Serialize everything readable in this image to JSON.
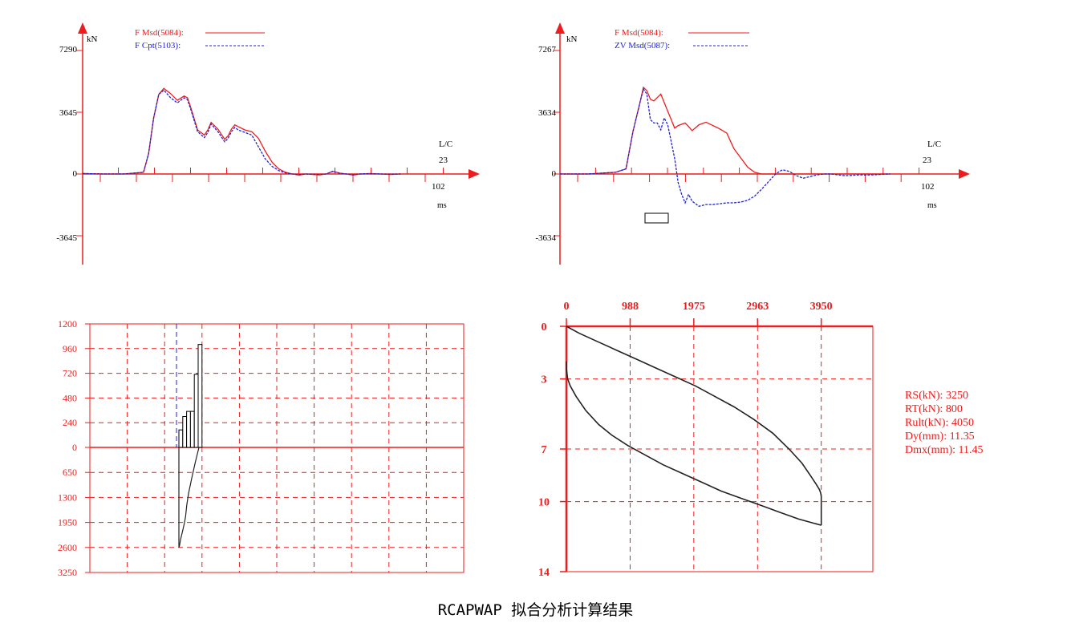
{
  "caption": "RCAPWAP 拟合分析计算结果",
  "colors": {
    "red": "#ee1c1c",
    "blue": "#1e22d8",
    "black": "#000000",
    "grid": "#ee1c1c",
    "curve": "#222222"
  },
  "chart_data": [
    {
      "id": "force-match",
      "type": "line",
      "ylabel": "kN",
      "yticks": [
        7290,
        3645,
        0,
        -3645
      ],
      "ylim": [
        -4500,
        8200
      ],
      "lc_label": "L/C",
      "lc_value": "23",
      "x_end_label": "102",
      "x_unit": "ms",
      "xlim": [
        0,
        102
      ],
      "series": [
        {
          "name": "F Msd(5084):",
          "style": "solid",
          "color": "#ee1c1c",
          "x": [
            0,
            6,
            12,
            18,
            19.5,
            21,
            22.5,
            24,
            26,
            28,
            30,
            31,
            32,
            34,
            36,
            37,
            38,
            40,
            42,
            43,
            44,
            45,
            46,
            48,
            50,
            52,
            54,
            56,
            58,
            60,
            62,
            64,
            66,
            68,
            70,
            72,
            74,
            76,
            78,
            80,
            82,
            85,
            88,
            91,
            94
          ],
          "y": [
            30,
            0,
            0,
            100,
            1200,
            3300,
            4700,
            5050,
            4750,
            4350,
            4600,
            4500,
            3900,
            2600,
            2300,
            2600,
            3050,
            2650,
            2050,
            2250,
            2650,
            2900,
            2800,
            2600,
            2500,
            2100,
            1350,
            700,
            300,
            100,
            0,
            -60,
            0,
            -30,
            -50,
            0,
            150,
            50,
            0,
            -60,
            0,
            30,
            0,
            -30,
            0
          ]
        },
        {
          "name": "F Cpt(5103):",
          "style": "dashed",
          "color": "#1e22d8",
          "x": [
            0,
            6,
            12,
            18,
            19.5,
            21,
            22.5,
            24,
            26,
            28,
            30,
            31,
            32,
            34,
            36,
            37,
            38,
            40,
            42,
            43,
            44,
            45,
            46,
            48,
            50,
            52,
            54,
            56,
            58,
            60,
            62,
            64,
            66,
            68,
            70,
            72,
            74,
            76,
            78,
            80,
            82,
            85,
            88,
            91,
            94
          ],
          "y": [
            30,
            0,
            0,
            100,
            1200,
            3300,
            4700,
            4950,
            4500,
            4200,
            4500,
            4400,
            3800,
            2500,
            2150,
            2450,
            2950,
            2500,
            1900,
            2100,
            2500,
            2750,
            2600,
            2450,
            2300,
            1600,
            900,
            450,
            200,
            60,
            0,
            -40,
            0,
            -20,
            -40,
            0,
            160,
            40,
            0,
            -50,
            0,
            20,
            0,
            -20,
            0
          ]
        }
      ]
    },
    {
      "id": "force-velocity",
      "type": "line",
      "ylabel": "kN",
      "yticks": [
        7267,
        3634,
        0,
        -3634
      ],
      "ylim": [
        -4500,
        8200
      ],
      "lc_label": "L/C",
      "lc_value": "23",
      "x_end_label": "102",
      "x_unit": "ms",
      "xlim": [
        0,
        102
      ],
      "series": [
        {
          "name": "F Msd(5084):",
          "style": "solid",
          "color": "#ee1c1c",
          "x": [
            0,
            8,
            16,
            19,
            21,
            23,
            24,
            25,
            26,
            27,
            28,
            29,
            30,
            31,
            32,
            33,
            34,
            36,
            37,
            38,
            40,
            42,
            44,
            46,
            48,
            50,
            52,
            54,
            56,
            58,
            60,
            62,
            64,
            66,
            68,
            70,
            72,
            74,
            76,
            78,
            80,
            85,
            90,
            95
          ],
          "y": [
            0,
            0,
            100,
            300,
            2500,
            4200,
            5100,
            4900,
            4400,
            4300,
            4500,
            4700,
            4200,
            3700,
            3200,
            2700,
            2850,
            3000,
            2800,
            2550,
            2900,
            3050,
            2850,
            2650,
            2400,
            1500,
            950,
            400,
            100,
            0,
            0,
            0,
            0,
            0,
            0,
            0,
            0,
            0,
            0,
            0,
            0,
            0,
            0,
            0
          ]
        },
        {
          "name": "ZV Msd(5087):",
          "style": "dashed",
          "color": "#1e22d8",
          "x": [
            0,
            8,
            16,
            19,
            21,
            23,
            24,
            25,
            26,
            27,
            28,
            29,
            30,
            31,
            32,
            33,
            34,
            35,
            36,
            37,
            38,
            40,
            42,
            44,
            46,
            48,
            50,
            52,
            54,
            56,
            58,
            60,
            62,
            64,
            66,
            68,
            70,
            72,
            74,
            76,
            78,
            80,
            82,
            84,
            86,
            88,
            90,
            92,
            95
          ],
          "y": [
            0,
            0,
            100,
            300,
            2500,
            4200,
            5000,
            4700,
            3200,
            3000,
            3000,
            2600,
            3300,
            2900,
            1900,
            900,
            -500,
            -1200,
            -1700,
            -1200,
            -1600,
            -1900,
            -1800,
            -1800,
            -1750,
            -1700,
            -1700,
            -1650,
            -1550,
            -1300,
            -900,
            -450,
            0,
            250,
            150,
            -100,
            -250,
            -150,
            -50,
            0,
            0,
            -50,
            -100,
            -80,
            -50,
            -60,
            -50,
            -30,
            0
          ]
        }
      ]
    },
    {
      "id": "resistance-distribution",
      "type": "bar",
      "yticks_top": [
        "1200",
        "960",
        "720",
        "480",
        "240",
        "0"
      ],
      "yticks_bottom": [
        "650",
        "1300",
        "1950",
        "2600",
        "3250"
      ],
      "ylim_top": [
        0,
        1200
      ],
      "ylim_bottom": [
        0,
        3250
      ],
      "bars": [
        {
          "x0": 0.0,
          "x1": 0.2,
          "value": 170
        },
        {
          "x0": 0.2,
          "x1": 0.4,
          "value": 300
        },
        {
          "x0": 0.4,
          "x1": 0.6,
          "value": 350
        },
        {
          "x0": 0.6,
          "x1": 0.8,
          "value": 350
        },
        {
          "x0": 0.8,
          "x1": 1.0,
          "value": 710
        },
        {
          "x0": 1.0,
          "x1": 1.2,
          "value": 1000
        }
      ],
      "cumulative_curve": {
        "depth": [
          0,
          0.3,
          0.8,
          1.7,
          2.6,
          3.3,
          3.9,
          4.8,
          6.4,
          8.1,
          10.0
        ],
        "value": [
          2600,
          2550,
          2400,
          2200,
          2000,
          1800,
          1500,
          1200,
          800,
          400,
          0
        ]
      }
    },
    {
      "id": "load-settlement",
      "type": "line",
      "xticks": [
        0,
        988,
        1975,
        2963,
        3950
      ],
      "xlim": [
        0,
        4750
      ],
      "yticks": [
        0,
        3,
        7,
        10,
        14
      ],
      "ylim": [
        0,
        14
      ],
      "series": [
        {
          "name": "",
          "style": "solid",
          "color": "#222222",
          "x": [
            0,
            200,
            500,
            800,
            1100,
            1400,
            1700,
            2000,
            2300,
            2600,
            2900,
            3200,
            3450,
            3650,
            3780,
            3870,
            3920,
            3940,
            3950,
            3950,
            3950
          ],
          "y": [
            0,
            0.4,
            0.9,
            1.4,
            1.9,
            2.4,
            2.9,
            3.4,
            4.0,
            4.6,
            5.3,
            6.1,
            7.0,
            7.8,
            8.5,
            9.0,
            9.3,
            9.5,
            9.7,
            10.5,
            11.35
          ]
        },
        {
          "name": "",
          "style": "solid",
          "color": "#222222",
          "x": [
            3950,
            3600,
            3300,
            3000,
            2700,
            2400,
            2100,
            1800,
            1500,
            1200,
            950,
            700,
            500,
            300,
            150,
            60,
            20,
            0,
            0
          ],
          "y": [
            11.35,
            11.0,
            10.6,
            10.2,
            9.8,
            9.4,
            8.9,
            8.4,
            7.9,
            7.3,
            6.8,
            6.2,
            5.6,
            4.8,
            4.0,
            3.4,
            3.0,
            2.4,
            2.0
          ]
        }
      ],
      "results": [
        "RS(kN): 3250",
        "RT(kN): 800",
        "Rult(kN): 4050",
        "Dy(mm): 11.35",
        "Dmx(mm): 11.45"
      ]
    }
  ]
}
